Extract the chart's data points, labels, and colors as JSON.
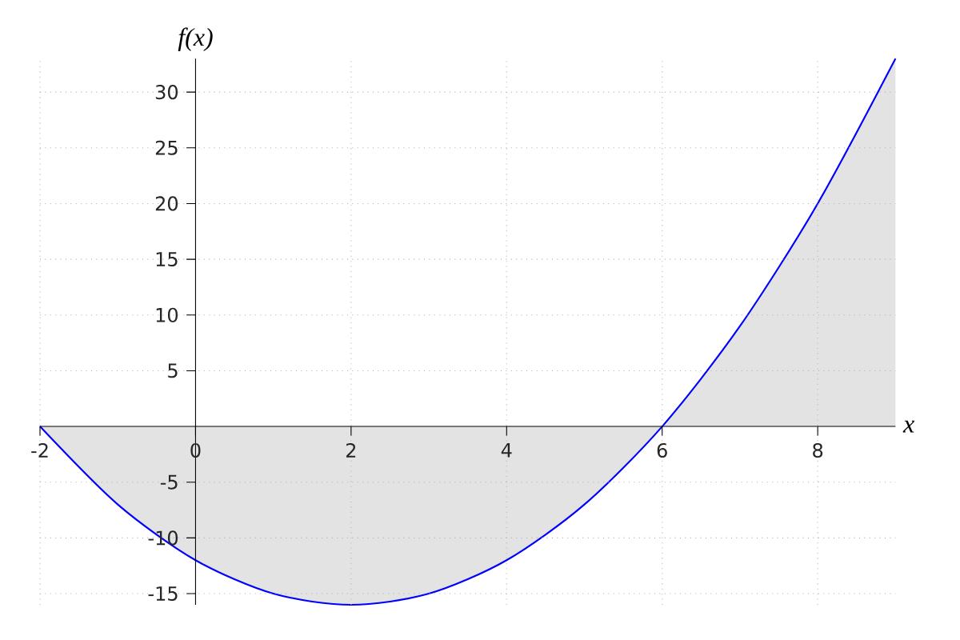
{
  "chart_data": {
    "type": "area",
    "xlabel": "x",
    "ylabel": "f(x)",
    "x": [
      -2,
      -1,
      0,
      1,
      2,
      3,
      4,
      5,
      6,
      7,
      8,
      9
    ],
    "values": [
      0,
      -7,
      -12,
      -15,
      -16,
      -15,
      -12,
      -7,
      0,
      9,
      20,
      33
    ],
    "color": "#0000ff",
    "xlim": [
      -2,
      9
    ],
    "ylim": [
      -16,
      33
    ],
    "xticks": [
      -2,
      0,
      2,
      4,
      6,
      8
    ],
    "yticks": [
      -15,
      -10,
      -5,
      5,
      10,
      15,
      20,
      25,
      30
    ],
    "grid": true
  }
}
